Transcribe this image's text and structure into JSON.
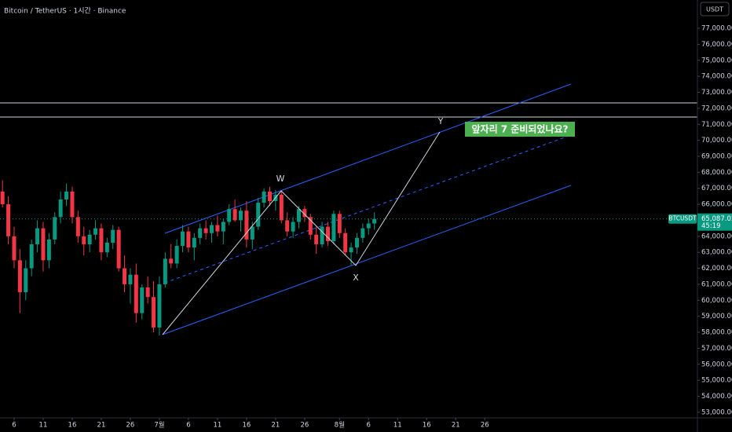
{
  "chart_data": {
    "type": "candlestick",
    "title": "Bitcoin / TetherUS · 1시간 · Binance",
    "currency": "USDT",
    "symbol": "BTCUSDT",
    "last_price": {
      "value": 65087.02,
      "label": "65,087.02"
    },
    "countdown": "45:19",
    "annotation": "앞자리 7 준비되었나요?",
    "wave_labels": [
      "W",
      "X",
      "Y"
    ],
    "up_color": "#089981",
    "down_color": "#f23645",
    "xlim": [
      3.57,
      123.6
    ],
    "ylim": [
      52650,
      78770
    ],
    "xticks": [
      6,
      11,
      16,
      21,
      26,
      {
        "value": 31,
        "label": "7월"
      },
      {
        "value": 36,
        "label": "6"
      },
      {
        "value": 41,
        "label": "11"
      },
      {
        "value": 46,
        "label": "16"
      },
      {
        "value": 51,
        "label": "21"
      },
      {
        "value": 56,
        "label": "26"
      },
      {
        "value": 62,
        "label": "8월"
      },
      {
        "value": 67,
        "label": "6"
      },
      {
        "value": 72,
        "label": "11"
      },
      {
        "value": 77,
        "label": "16"
      },
      {
        "value": 82,
        "label": "21"
      },
      {
        "value": 87,
        "label": "26"
      }
    ],
    "yticks": [
      {
        "value": 53000,
        "label": "53,000.00"
      },
      {
        "value": 54000,
        "label": "54,000.00"
      },
      {
        "value": 55000,
        "label": "55,000.00"
      },
      {
        "value": 56000,
        "label": "56,000.00"
      },
      {
        "value": 57000,
        "label": "57,000.00"
      },
      {
        "value": 58000,
        "label": "58,000.00"
      },
      {
        "value": 59000,
        "label": "59,000.00"
      },
      {
        "value": 60000,
        "label": "60,000.00"
      },
      {
        "value": 61000,
        "label": "61,000.00"
      },
      {
        "value": 62000,
        "label": "62,000.00"
      },
      {
        "value": 63000,
        "label": "63,000.00"
      },
      {
        "value": 64000,
        "label": "64,000.00"
      },
      {
        "value": 65000,
        "label": "65,000.00"
      },
      {
        "value": 66000,
        "label": "66,000.00"
      },
      {
        "value": 67000,
        "label": "67,000.00"
      },
      {
        "value": 68000,
        "label": "68,000.00"
      },
      {
        "value": 69000,
        "label": "69,000.00"
      },
      {
        "value": 70000,
        "label": "70,000.00"
      },
      {
        "value": 71000,
        "label": "71,000.00"
      },
      {
        "value": 72000,
        "label": "72,000.00"
      },
      {
        "value": 73000,
        "label": "73,000.00"
      },
      {
        "value": 74000,
        "label": "74,000.00"
      },
      {
        "value": 75000,
        "label": "75,000.00"
      },
      {
        "value": 76000,
        "label": "76,000.00"
      },
      {
        "value": 77000,
        "label": "77,000.00"
      }
    ],
    "x": [
      4,
      5,
      6,
      7,
      8,
      9,
      10,
      11,
      12,
      13,
      14,
      15,
      16,
      17,
      18,
      19,
      20,
      21,
      22,
      23,
      24,
      25,
      26,
      27,
      28,
      29,
      30,
      31,
      32,
      33,
      34,
      35,
      36,
      37,
      38,
      39,
      40,
      41,
      42,
      43,
      44,
      45,
      46,
      47,
      48,
      49,
      50,
      51,
      52,
      53,
      54,
      55,
      56,
      57,
      58,
      59,
      60,
      61,
      62,
      63,
      64,
      65,
      66,
      67,
      68
    ],
    "candles": [
      [
        66800,
        67500,
        65800,
        66000
      ],
      [
        66000,
        66500,
        63500,
        64000
      ],
      [
        64000,
        64600,
        62000,
        62500
      ],
      [
        62500,
        63200,
        59200,
        60500
      ],
      [
        60500,
        62500,
        60000,
        62000
      ],
      [
        62000,
        63800,
        61500,
        63500
      ],
      [
        63500,
        65000,
        63000,
        64500
      ],
      [
        64500,
        64900,
        61800,
        62500
      ],
      [
        62500,
        64200,
        62000,
        63800
      ],
      [
        63800,
        65500,
        63500,
        65200
      ],
      [
        65200,
        66800,
        64800,
        66300
      ],
      [
        66300,
        67300,
        65900,
        66800
      ],
      [
        66800,
        67100,
        64800,
        65200
      ],
      [
        65200,
        65600,
        63600,
        64000
      ],
      [
        64000,
        64600,
        62800,
        63500
      ],
      [
        63500,
        64400,
        63000,
        64100
      ],
      [
        64100,
        65000,
        63800,
        64500
      ],
      [
        64500,
        64800,
        62500,
        63000
      ],
      [
        63000,
        63900,
        62700,
        63600
      ],
      [
        63600,
        64700,
        63200,
        64400
      ],
      [
        64400,
        64600,
        61800,
        62000
      ],
      [
        62000,
        62800,
        60500,
        61000
      ],
      [
        61000,
        62000,
        59800,
        61600
      ],
      [
        61600,
        62300,
        58600,
        59200
      ],
      [
        59200,
        61000,
        58800,
        60800
      ],
      [
        60800,
        61500,
        59800,
        60200
      ],
      [
        60200,
        61200,
        58000,
        58300
      ],
      [
        58300,
        61500,
        57800,
        61000
      ],
      [
        61000,
        63000,
        60800,
        62600
      ],
      [
        62600,
        63500,
        62000,
        62300
      ],
      [
        62300,
        63800,
        62000,
        63400
      ],
      [
        63400,
        64700,
        63000,
        64300
      ],
      [
        64300,
        64600,
        63000,
        63300
      ],
      [
        63300,
        64200,
        62500,
        63900
      ],
      [
        63900,
        64800,
        63500,
        64500
      ],
      [
        64500,
        65000,
        63800,
        64200
      ],
      [
        64200,
        64900,
        63600,
        64700
      ],
      [
        64700,
        65300,
        64000,
        64300
      ],
      [
        64300,
        65100,
        63500,
        64900
      ],
      [
        64900,
        66000,
        64700,
        65700
      ],
      [
        65700,
        66300,
        64900,
        65000
      ],
      [
        65000,
        65800,
        64300,
        65600
      ],
      [
        65600,
        66200,
        63300,
        63800
      ],
      [
        63800,
        64900,
        63200,
        64600
      ],
      [
        64600,
        66400,
        64400,
        66100
      ],
      [
        66100,
        67000,
        65800,
        66800
      ],
      [
        66800,
        67100,
        65900,
        66200
      ],
      [
        66200,
        66900,
        65600,
        66600
      ],
      [
        66600,
        66800,
        64800,
        65000
      ],
      [
        65000,
        65500,
        64000,
        64300
      ],
      [
        64300,
        65200,
        63900,
        64900
      ],
      [
        64900,
        65900,
        64500,
        65700
      ],
      [
        65700,
        65900,
        64900,
        65200
      ],
      [
        65200,
        65400,
        63800,
        64100
      ],
      [
        64100,
        64600,
        62900,
        63500
      ],
      [
        63500,
        64900,
        63300,
        64600
      ],
      [
        64600,
        64900,
        63400,
        63700
      ],
      [
        63700,
        65600,
        63500,
        65400
      ],
      [
        65400,
        65600,
        63900,
        64200
      ],
      [
        64200,
        64500,
        62800,
        63000
      ],
      [
        63000,
        63600,
        62200,
        63300
      ],
      [
        63300,
        64200,
        62900,
        63900
      ],
      [
        63900,
        64800,
        63600,
        64500
      ],
      [
        64500,
        65100,
        64100,
        64800
      ],
      [
        64800,
        65500,
        64400,
        65087.02
      ]
    ]
  }
}
